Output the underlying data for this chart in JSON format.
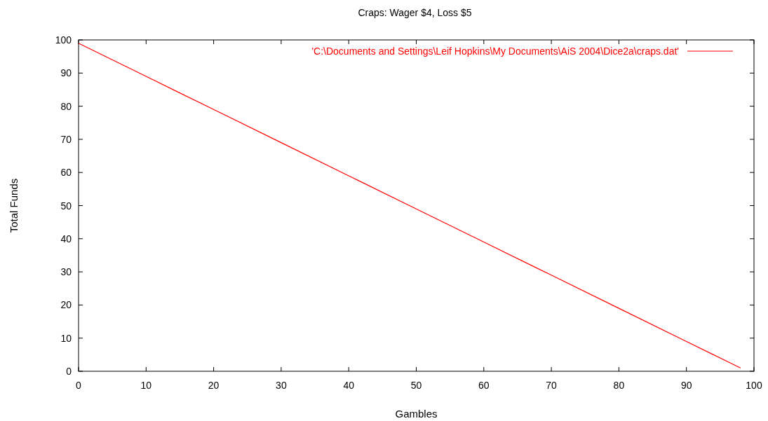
{
  "chart_data": {
    "type": "line",
    "title": "Craps: Wager $4, Loss $5",
    "xlabel": "Gambles",
    "ylabel": "Total Funds",
    "series": [
      {
        "name": "'C:\\Documents and Settings\\Leif Hopkins\\My Documents\\AiS 2004\\Dice2a\\craps.dat'",
        "color": "#ff0000",
        "x": [
          0,
          10,
          20,
          30,
          40,
          50,
          60,
          70,
          80,
          90,
          98
        ],
        "values": [
          99,
          89,
          79,
          69,
          59,
          49,
          39,
          29,
          19,
          9,
          1
        ]
      }
    ],
    "xlim": [
      0,
      100
    ],
    "xticks": [
      0,
      10,
      20,
      30,
      40,
      50,
      60,
      70,
      80,
      90,
      100
    ],
    "ylim": [
      0,
      100
    ],
    "yticks": [
      0,
      10,
      20,
      30,
      40,
      50,
      60,
      70,
      80,
      90,
      100
    ],
    "legend": "top right"
  }
}
